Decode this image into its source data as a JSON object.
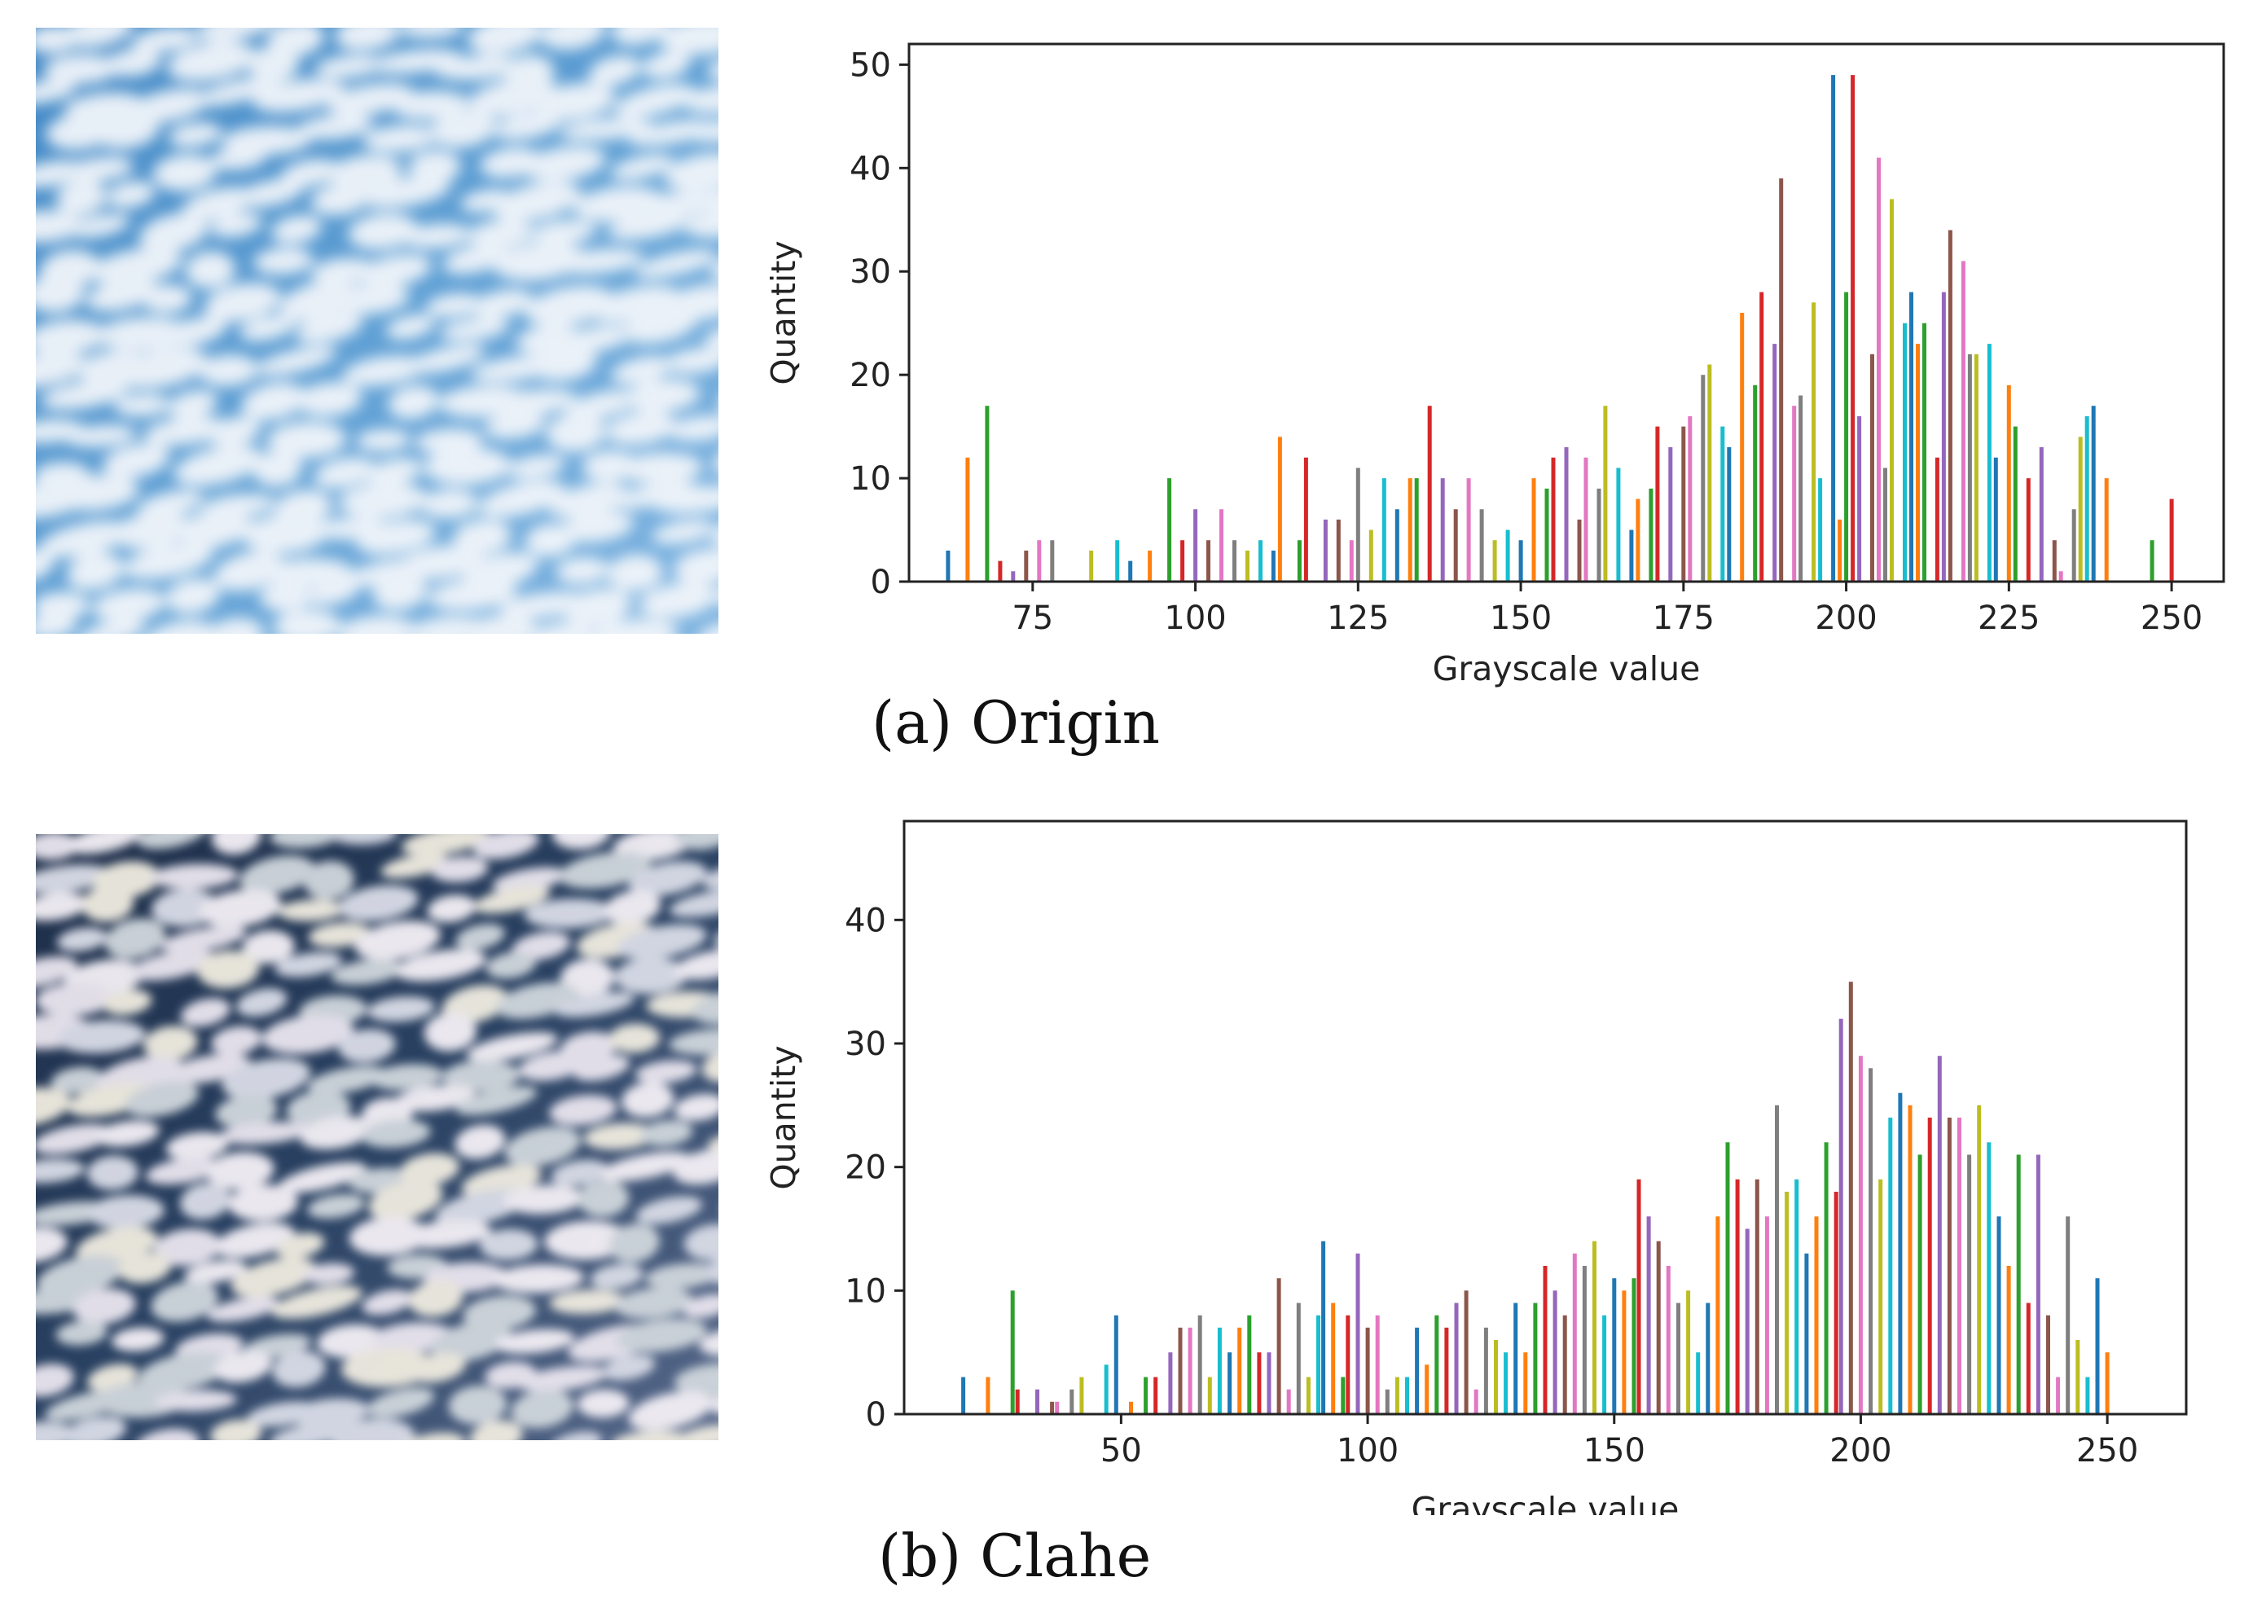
{
  "panels": [
    {
      "id": "origin",
      "caption": "(a) Origin",
      "photo": "sky-photo-original",
      "chart_ref": 0
    },
    {
      "id": "clahe",
      "caption": "(b) Clahe",
      "photo": "sky-photo-clahe",
      "chart_ref": 1
    }
  ],
  "palette": [
    "#1f77b4",
    "#ff7f0e",
    "#2ca02c",
    "#d62728",
    "#9467bd",
    "#8c564b",
    "#e377c2",
    "#7f7f7f",
    "#bcbd22",
    "#17becf"
  ],
  "chart_data": [
    {
      "type": "bar",
      "xlabel": "Grayscale value",
      "ylabel": "Quantity",
      "xlim": [
        56,
        258
      ],
      "ylim": [
        0,
        52
      ],
      "xticks": [
        75,
        100,
        125,
        150,
        175,
        200,
        225,
        250
      ],
      "yticks": [
        0,
        10,
        20,
        30,
        40,
        50
      ],
      "grid": false,
      "legend": "none",
      "bars": [
        {
          "x": 62,
          "v": 3
        },
        {
          "x": 65,
          "v": 12
        },
        {
          "x": 68,
          "v": 17
        },
        {
          "x": 70,
          "v": 2
        },
        {
          "x": 72,
          "v": 1
        },
        {
          "x": 74,
          "v": 3
        },
        {
          "x": 76,
          "v": 4
        },
        {
          "x": 78,
          "v": 4
        },
        {
          "x": 84,
          "v": 3
        },
        {
          "x": 88,
          "v": 4
        },
        {
          "x": 90,
          "v": 2
        },
        {
          "x": 93,
          "v": 3
        },
        {
          "x": 96,
          "v": 10
        },
        {
          "x": 98,
          "v": 4
        },
        {
          "x": 100,
          "v": 7
        },
        {
          "x": 102,
          "v": 4
        },
        {
          "x": 104,
          "v": 7
        },
        {
          "x": 106,
          "v": 4
        },
        {
          "x": 108,
          "v": 3
        },
        {
          "x": 110,
          "v": 4
        },
        {
          "x": 112,
          "v": 3
        },
        {
          "x": 113,
          "v": 14
        },
        {
          "x": 116,
          "v": 4
        },
        {
          "x": 117,
          "v": 12
        },
        {
          "x": 120,
          "v": 6
        },
        {
          "x": 122,
          "v": 6
        },
        {
          "x": 124,
          "v": 4
        },
        {
          "x": 125,
          "v": 11
        },
        {
          "x": 127,
          "v": 5
        },
        {
          "x": 129,
          "v": 10
        },
        {
          "x": 131,
          "v": 7
        },
        {
          "x": 133,
          "v": 10
        },
        {
          "x": 134,
          "v": 10
        },
        {
          "x": 136,
          "v": 17
        },
        {
          "x": 138,
          "v": 10
        },
        {
          "x": 140,
          "v": 7
        },
        {
          "x": 142,
          "v": 10
        },
        {
          "x": 144,
          "v": 7
        },
        {
          "x": 146,
          "v": 4
        },
        {
          "x": 148,
          "v": 5
        },
        {
          "x": 150,
          "v": 4
        },
        {
          "x": 152,
          "v": 10
        },
        {
          "x": 154,
          "v": 9
        },
        {
          "x": 155,
          "v": 12
        },
        {
          "x": 157,
          "v": 13
        },
        {
          "x": 159,
          "v": 6
        },
        {
          "x": 160,
          "v": 12
        },
        {
          "x": 162,
          "v": 9
        },
        {
          "x": 163,
          "v": 17
        },
        {
          "x": 165,
          "v": 11
        },
        {
          "x": 167,
          "v": 5
        },
        {
          "x": 168,
          "v": 8
        },
        {
          "x": 170,
          "v": 9
        },
        {
          "x": 171,
          "v": 15
        },
        {
          "x": 173,
          "v": 13
        },
        {
          "x": 175,
          "v": 15
        },
        {
          "x": 176,
          "v": 16
        },
        {
          "x": 178,
          "v": 20
        },
        {
          "x": 179,
          "v": 21
        },
        {
          "x": 181,
          "v": 15
        },
        {
          "x": 182,
          "v": 13
        },
        {
          "x": 184,
          "v": 26
        },
        {
          "x": 186,
          "v": 19
        },
        {
          "x": 187,
          "v": 28
        },
        {
          "x": 189,
          "v": 23
        },
        {
          "x": 190,
          "v": 39
        },
        {
          "x": 192,
          "v": 17
        },
        {
          "x": 193,
          "v": 18
        },
        {
          "x": 195,
          "v": 27
        },
        {
          "x": 196,
          "v": 10
        },
        {
          "x": 198,
          "v": 49
        },
        {
          "x": 199,
          "v": 6
        },
        {
          "x": 200,
          "v": 28
        },
        {
          "x": 201,
          "v": 49
        },
        {
          "x": 202,
          "v": 16
        },
        {
          "x": 204,
          "v": 22
        },
        {
          "x": 205,
          "v": 41
        },
        {
          "x": 206,
          "v": 11
        },
        {
          "x": 207,
          "v": 37
        },
        {
          "x": 209,
          "v": 25
        },
        {
          "x": 210,
          "v": 28
        },
        {
          "x": 211,
          "v": 23
        },
        {
          "x": 212,
          "v": 25
        },
        {
          "x": 214,
          "v": 12
        },
        {
          "x": 215,
          "v": 28
        },
        {
          "x": 216,
          "v": 34
        },
        {
          "x": 218,
          "v": 31
        },
        {
          "x": 219,
          "v": 22
        },
        {
          "x": 220,
          "v": 22
        },
        {
          "x": 222,
          "v": 23
        },
        {
          "x": 223,
          "v": 12
        },
        {
          "x": 225,
          "v": 19
        },
        {
          "x": 226,
          "v": 15
        },
        {
          "x": 228,
          "v": 10
        },
        {
          "x": 230,
          "v": 13
        },
        {
          "x": 232,
          "v": 4
        },
        {
          "x": 233,
          "v": 1
        },
        {
          "x": 235,
          "v": 7
        },
        {
          "x": 236,
          "v": 14
        },
        {
          "x": 237,
          "v": 16
        },
        {
          "x": 238,
          "v": 17
        },
        {
          "x": 240,
          "v": 10
        },
        {
          "x": 247,
          "v": 4
        },
        {
          "x": 250,
          "v": 8
        }
      ]
    },
    {
      "type": "bar",
      "xlabel": "Grayscale value",
      "ylabel": "Quantity",
      "xlim": [
        6,
        266
      ],
      "ylim": [
        0,
        48
      ],
      "xticks": [
        50,
        100,
        150,
        200,
        250
      ],
      "yticks": [
        0,
        10,
        20,
        30,
        40
      ],
      "grid": false,
      "legend": "none",
      "bars": [
        {
          "x": 18,
          "v": 3
        },
        {
          "x": 23,
          "v": 3
        },
        {
          "x": 28,
          "v": 10
        },
        {
          "x": 29,
          "v": 2
        },
        {
          "x": 33,
          "v": 2
        },
        {
          "x": 36,
          "v": 1
        },
        {
          "x": 37,
          "v": 1
        },
        {
          "x": 40,
          "v": 2
        },
        {
          "x": 42,
          "v": 3
        },
        {
          "x": 47,
          "v": 4
        },
        {
          "x": 49,
          "v": 8
        },
        {
          "x": 52,
          "v": 1
        },
        {
          "x": 55,
          "v": 3
        },
        {
          "x": 57,
          "v": 3
        },
        {
          "x": 60,
          "v": 5
        },
        {
          "x": 62,
          "v": 7
        },
        {
          "x": 64,
          "v": 7
        },
        {
          "x": 66,
          "v": 8
        },
        {
          "x": 68,
          "v": 3
        },
        {
          "x": 70,
          "v": 7
        },
        {
          "x": 72,
          "v": 5
        },
        {
          "x": 74,
          "v": 7
        },
        {
          "x": 76,
          "v": 8
        },
        {
          "x": 78,
          "v": 5
        },
        {
          "x": 80,
          "v": 5
        },
        {
          "x": 82,
          "v": 11
        },
        {
          "x": 84,
          "v": 2
        },
        {
          "x": 86,
          "v": 9
        },
        {
          "x": 88,
          "v": 3
        },
        {
          "x": 90,
          "v": 8
        },
        {
          "x": 91,
          "v": 14
        },
        {
          "x": 93,
          "v": 9
        },
        {
          "x": 95,
          "v": 3
        },
        {
          "x": 96,
          "v": 8
        },
        {
          "x": 98,
          "v": 13
        },
        {
          "x": 100,
          "v": 7
        },
        {
          "x": 102,
          "v": 8
        },
        {
          "x": 104,
          "v": 2
        },
        {
          "x": 106,
          "v": 3
        },
        {
          "x": 108,
          "v": 3
        },
        {
          "x": 110,
          "v": 7
        },
        {
          "x": 112,
          "v": 4
        },
        {
          "x": 114,
          "v": 8
        },
        {
          "x": 116,
          "v": 7
        },
        {
          "x": 118,
          "v": 9
        },
        {
          "x": 120,
          "v": 10
        },
        {
          "x": 122,
          "v": 2
        },
        {
          "x": 124,
          "v": 7
        },
        {
          "x": 126,
          "v": 6
        },
        {
          "x": 128,
          "v": 5
        },
        {
          "x": 130,
          "v": 9
        },
        {
          "x": 132,
          "v": 5
        },
        {
          "x": 134,
          "v": 9
        },
        {
          "x": 136,
          "v": 12
        },
        {
          "x": 138,
          "v": 10
        },
        {
          "x": 140,
          "v": 8
        },
        {
          "x": 142,
          "v": 13
        },
        {
          "x": 144,
          "v": 12
        },
        {
          "x": 146,
          "v": 14
        },
        {
          "x": 148,
          "v": 8
        },
        {
          "x": 150,
          "v": 11
        },
        {
          "x": 152,
          "v": 10
        },
        {
          "x": 154,
          "v": 11
        },
        {
          "x": 155,
          "v": 19
        },
        {
          "x": 157,
          "v": 16
        },
        {
          "x": 159,
          "v": 14
        },
        {
          "x": 161,
          "v": 12
        },
        {
          "x": 163,
          "v": 9
        },
        {
          "x": 165,
          "v": 10
        },
        {
          "x": 167,
          "v": 5
        },
        {
          "x": 169,
          "v": 9
        },
        {
          "x": 171,
          "v": 16
        },
        {
          "x": 173,
          "v": 22
        },
        {
          "x": 175,
          "v": 19
        },
        {
          "x": 177,
          "v": 15
        },
        {
          "x": 179,
          "v": 19
        },
        {
          "x": 181,
          "v": 16
        },
        {
          "x": 183,
          "v": 25
        },
        {
          "x": 185,
          "v": 18
        },
        {
          "x": 187,
          "v": 19
        },
        {
          "x": 189,
          "v": 13
        },
        {
          "x": 191,
          "v": 16
        },
        {
          "x": 193,
          "v": 22
        },
        {
          "x": 195,
          "v": 18
        },
        {
          "x": 196,
          "v": 32
        },
        {
          "x": 198,
          "v": 35
        },
        {
          "x": 200,
          "v": 29
        },
        {
          "x": 202,
          "v": 28
        },
        {
          "x": 204,
          "v": 19
        },
        {
          "x": 206,
          "v": 24
        },
        {
          "x": 208,
          "v": 26
        },
        {
          "x": 210,
          "v": 25
        },
        {
          "x": 212,
          "v": 21
        },
        {
          "x": 214,
          "v": 24
        },
        {
          "x": 216,
          "v": 29
        },
        {
          "x": 218,
          "v": 24
        },
        {
          "x": 220,
          "v": 24
        },
        {
          "x": 222,
          "v": 21
        },
        {
          "x": 224,
          "v": 25
        },
        {
          "x": 226,
          "v": 22
        },
        {
          "x": 228,
          "v": 16
        },
        {
          "x": 230,
          "v": 12
        },
        {
          "x": 232,
          "v": 21
        },
        {
          "x": 234,
          "v": 9
        },
        {
          "x": 236,
          "v": 21
        },
        {
          "x": 238,
          "v": 8
        },
        {
          "x": 240,
          "v": 3
        },
        {
          "x": 242,
          "v": 16
        },
        {
          "x": 244,
          "v": 6
        },
        {
          "x": 246,
          "v": 3
        },
        {
          "x": 248,
          "v": 11
        },
        {
          "x": 250,
          "v": 5
        }
      ]
    }
  ]
}
